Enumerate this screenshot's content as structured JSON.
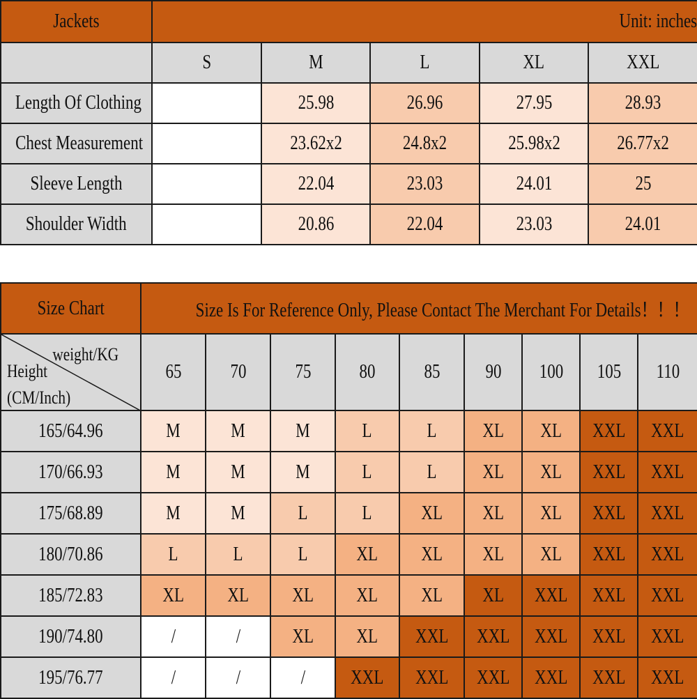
{
  "palette": {
    "none": "#ffffff",
    "light": "#fce4d6",
    "mid": "#f8cbad",
    "strong": "#f4b183",
    "dark": "#c55a11",
    "label": "#d9d9d9"
  },
  "jackets": {
    "title": "Jackets",
    "unit": "Unit: inches",
    "sizes": [
      "S",
      "M",
      "L",
      "XL",
      "XXL"
    ],
    "size_shades": [
      "none",
      "light",
      "mid",
      "light",
      "mid"
    ],
    "rows": [
      {
        "label": "Length Of Clothing",
        "values": [
          "",
          "25.98",
          "26.96",
          "27.95",
          "28.93"
        ]
      },
      {
        "label": "Chest Measurement",
        "values": [
          "",
          "23.62x2",
          "24.8x2",
          "25.98x2",
          "26.77x2"
        ]
      },
      {
        "label": "Sleeve Length",
        "values": [
          "",
          "22.04",
          "23.03",
          "24.01",
          "25"
        ]
      },
      {
        "label": "Shoulder Width",
        "values": [
          "",
          "20.86",
          "22.04",
          "23.03",
          "24.01"
        ]
      }
    ]
  },
  "size_chart": {
    "title": "Size Chart",
    "notice": "Size Is For Reference Only, Please Contact The Merchant For Details！！！",
    "corner_weight": "weight/KG",
    "corner_height": "Height",
    "corner_height_unit": "(CM/Inch)",
    "weights": [
      "65",
      "70",
      "75",
      "80",
      "85",
      "90",
      "100",
      "105",
      "110"
    ],
    "rows": [
      {
        "height": "165/64.96",
        "cells": [
          [
            "M",
            "light"
          ],
          [
            "M",
            "light"
          ],
          [
            "M",
            "light"
          ],
          [
            "L",
            "mid"
          ],
          [
            "L",
            "mid"
          ],
          [
            "XL",
            "strong"
          ],
          [
            "XL",
            "strong"
          ],
          [
            "XXL",
            "dark"
          ],
          [
            "XXL",
            "dark"
          ]
        ]
      },
      {
        "height": "170/66.93",
        "cells": [
          [
            "M",
            "light"
          ],
          [
            "M",
            "light"
          ],
          [
            "M",
            "light"
          ],
          [
            "L",
            "mid"
          ],
          [
            "L",
            "mid"
          ],
          [
            "XL",
            "strong"
          ],
          [
            "XL",
            "strong"
          ],
          [
            "XXL",
            "dark"
          ],
          [
            "XXL",
            "dark"
          ]
        ]
      },
      {
        "height": "175/68.89",
        "cells": [
          [
            "M",
            "light"
          ],
          [
            "M",
            "light"
          ],
          [
            "L",
            "mid"
          ],
          [
            "L",
            "mid"
          ],
          [
            "XL",
            "strong"
          ],
          [
            "XL",
            "strong"
          ],
          [
            "XL",
            "strong"
          ],
          [
            "XXL",
            "dark"
          ],
          [
            "XXL",
            "dark"
          ]
        ]
      },
      {
        "height": "180/70.86",
        "cells": [
          [
            "L",
            "mid"
          ],
          [
            "L",
            "mid"
          ],
          [
            "L",
            "mid"
          ],
          [
            "XL",
            "strong"
          ],
          [
            "XL",
            "strong"
          ],
          [
            "XL",
            "strong"
          ],
          [
            "XL",
            "strong"
          ],
          [
            "XXL",
            "dark"
          ],
          [
            "XXL",
            "dark"
          ]
        ]
      },
      {
        "height": "185/72.83",
        "cells": [
          [
            "XL",
            "strong"
          ],
          [
            "XL",
            "strong"
          ],
          [
            "XL",
            "strong"
          ],
          [
            "XL",
            "strong"
          ],
          [
            "XL",
            "strong"
          ],
          [
            "XL",
            "dark"
          ],
          [
            "XXL",
            "dark"
          ],
          [
            "XXL",
            "dark"
          ],
          [
            "XXL",
            "dark"
          ]
        ]
      },
      {
        "height": "190/74.80",
        "cells": [
          [
            "/",
            "none"
          ],
          [
            "/",
            "none"
          ],
          [
            "XL",
            "strong"
          ],
          [
            "XL",
            "strong"
          ],
          [
            "XXL",
            "dark"
          ],
          [
            "XXL",
            "dark"
          ],
          [
            "XXL",
            "dark"
          ],
          [
            "XXL",
            "dark"
          ],
          [
            "XXL",
            "dark"
          ]
        ]
      },
      {
        "height": "195/76.77",
        "cells": [
          [
            "/",
            "none"
          ],
          [
            "/",
            "none"
          ],
          [
            "/",
            "none"
          ],
          [
            "XXL",
            "dark"
          ],
          [
            "XXL",
            "dark"
          ],
          [
            "XXL",
            "dark"
          ],
          [
            "XXL",
            "dark"
          ],
          [
            "XXL",
            "dark"
          ],
          [
            "XXL",
            "dark"
          ]
        ]
      }
    ]
  }
}
